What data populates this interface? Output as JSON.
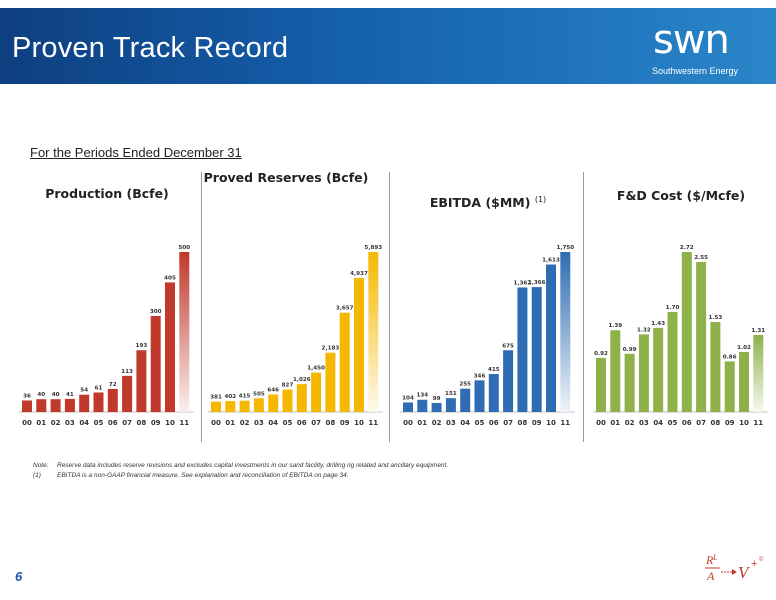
{
  "header": {
    "title": "Proven Track Record",
    "logo_text": "swn",
    "logo_subtext": "Southwestern Energy"
  },
  "subtitle": "For the Periods Ended December 31",
  "page_number": "6",
  "footnotes": {
    "note_marker": "Note:",
    "note_text": "Reserve data includes reserve revisions and excludes capital investments in our sand facility, drilling rig related and ancillary equipment.",
    "fn1_marker": "(1)",
    "fn1_text": "EBITDA is a non-GAAP financial measure. See explanation and reconciliation of EBITDA on page 34."
  },
  "chart_data": [
    {
      "type": "bar",
      "title": "Production (Bcfe)",
      "categories": [
        "00",
        "01",
        "02",
        "03",
        "04",
        "05",
        "06",
        "07",
        "08",
        "09",
        "10",
        "11"
      ],
      "values": [
        36,
        40,
        40,
        41,
        54,
        61,
        72,
        113,
        193,
        300,
        405,
        500
      ],
      "labels": [
        "36",
        "40",
        "40",
        "41",
        "54",
        "61",
        "72",
        "113",
        "193",
        "300",
        "405",
        "500"
      ],
      "color": "#c0392b"
    },
    {
      "type": "bar",
      "title": "Proved Reserves (Bcfe)",
      "categories": [
        "00",
        "01",
        "02",
        "03",
        "04",
        "05",
        "06",
        "07",
        "08",
        "09",
        "10",
        "11"
      ],
      "values": [
        381,
        402,
        415,
        505,
        646,
        827,
        1026,
        1450,
        2183,
        3657,
        4937,
        5893
      ],
      "labels": [
        "381",
        "402",
        "415",
        "505",
        "646",
        "827",
        "1,026",
        "1,450",
        "2,183",
        "3,657",
        "4,937",
        "5,893"
      ],
      "color": "#f5b800"
    },
    {
      "type": "bar",
      "title": "EBITDA ($MM)",
      "title_note": "(1)",
      "categories": [
        "00",
        "01",
        "02",
        "03",
        "04",
        "05",
        "06",
        "07",
        "08",
        "09",
        "10",
        "11"
      ],
      "values": [
        104,
        134,
        99,
        151,
        255,
        346,
        415,
        675,
        1362,
        1366,
        1613,
        1750
      ],
      "labels": [
        "104",
        "134",
        "99",
        "151",
        "255",
        "346",
        "415",
        "675",
        "1,362",
        "1,366",
        "1,613",
        "1,750"
      ],
      "color": "#2e6db4"
    },
    {
      "type": "bar",
      "title": "F&D Cost ($/Mcfe)",
      "categories": [
        "00",
        "01",
        "02",
        "03",
        "04",
        "05",
        "06",
        "07",
        "08",
        "09",
        "10",
        "11"
      ],
      "values": [
        0.92,
        1.39,
        0.99,
        1.32,
        1.43,
        1.7,
        2.72,
        2.55,
        1.53,
        0.86,
        1.02,
        1.31
      ],
      "labels": [
        "0.92",
        "1.39",
        "0.99",
        "1.32",
        "1.43",
        "1.70",
        "2.72",
        "2.55",
        "1.53",
        "0.86",
        "1.02",
        "1.31"
      ],
      "color": "#8fb14a"
    }
  ]
}
